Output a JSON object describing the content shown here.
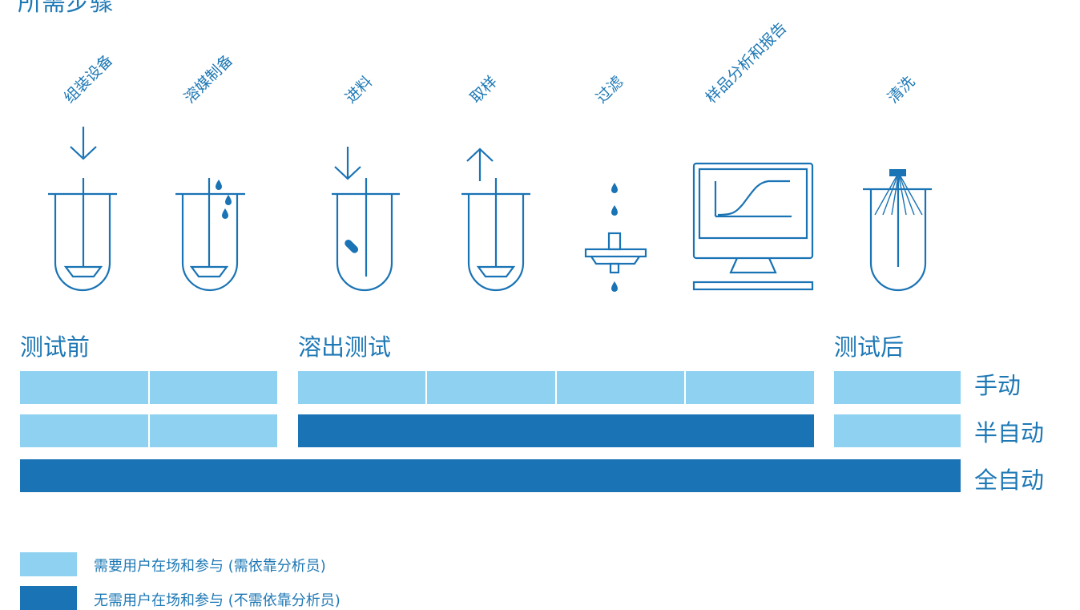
{
  "title": "所需步骤",
  "steps": [
    "组装设备",
    "溶媒制备",
    "进料",
    "取样",
    "过滤",
    "样品分析和报告",
    "清洗"
  ],
  "phases": [
    "测试前",
    "溶出测试",
    "测试后"
  ],
  "rows": [
    "手动",
    "半自动",
    "全自动"
  ],
  "legend": [
    {
      "label": "需要用户在场和参与 (需依靠分析员)",
      "color": "#8ed1f1"
    },
    {
      "label": "无需用户在场和参与 (不需依靠分析员)",
      "color": "#1a73b4"
    }
  ],
  "colors": {
    "light": "#8ed1f1",
    "dark": "#1a73b4",
    "text": "#1e78b5"
  },
  "icons": [
    "vessel-assemble-icon",
    "vessel-media-icon",
    "vessel-feed-icon",
    "vessel-sample-icon",
    "filter-icon",
    "monitor-icon",
    "vessel-clean-icon"
  ]
}
